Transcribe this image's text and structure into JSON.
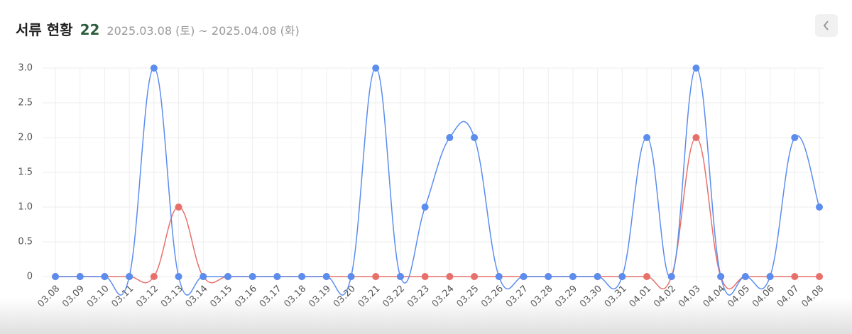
{
  "header": {
    "title": "서류 현황",
    "count": "22",
    "date_range": "2025.03.08 (토) ~ 2025.04.08 (화)"
  },
  "chart_data": {
    "type": "line",
    "categories": [
      "03.08",
      "03.09",
      "03.10",
      "03.11",
      "03.12",
      "03.13",
      "03.14",
      "03.15",
      "03.16",
      "03.17",
      "03.18",
      "03.19",
      "03.20",
      "03.21",
      "03.22",
      "03.23",
      "03.24",
      "03.25",
      "03.26",
      "03.27",
      "03.28",
      "03.29",
      "03.30",
      "03.31",
      "04.01",
      "04.02",
      "04.03",
      "04.04",
      "04.05",
      "04.06",
      "04.07",
      "04.08"
    ],
    "series": [
      {
        "color": "#e8706b",
        "values": [
          0,
          0,
          0,
          0,
          0,
          1,
          0,
          0,
          0,
          0,
          0,
          0,
          0,
          0,
          0,
          0,
          0,
          0,
          0,
          0,
          0,
          0,
          0,
          0,
          0,
          0,
          2,
          0,
          0,
          0,
          0,
          0
        ]
      },
      {
        "color": "#5b8def",
        "values": [
          0,
          0,
          0,
          0,
          3,
          0,
          0,
          0,
          0,
          0,
          0,
          0,
          0,
          3,
          0,
          1,
          2,
          2,
          0,
          0,
          0,
          0,
          0,
          0,
          2,
          0,
          3,
          0,
          0,
          0,
          2,
          1
        ]
      }
    ],
    "ylim": [
      0,
      3
    ],
    "yticks": [
      0,
      0.5,
      {
        "value": 1,
        "label": "1.0"
      },
      1.5,
      {
        "value": 2,
        "label": "2.0"
      },
      2.5,
      {
        "value": 3,
        "label": "3.0"
      }
    ],
    "grid": true
  }
}
